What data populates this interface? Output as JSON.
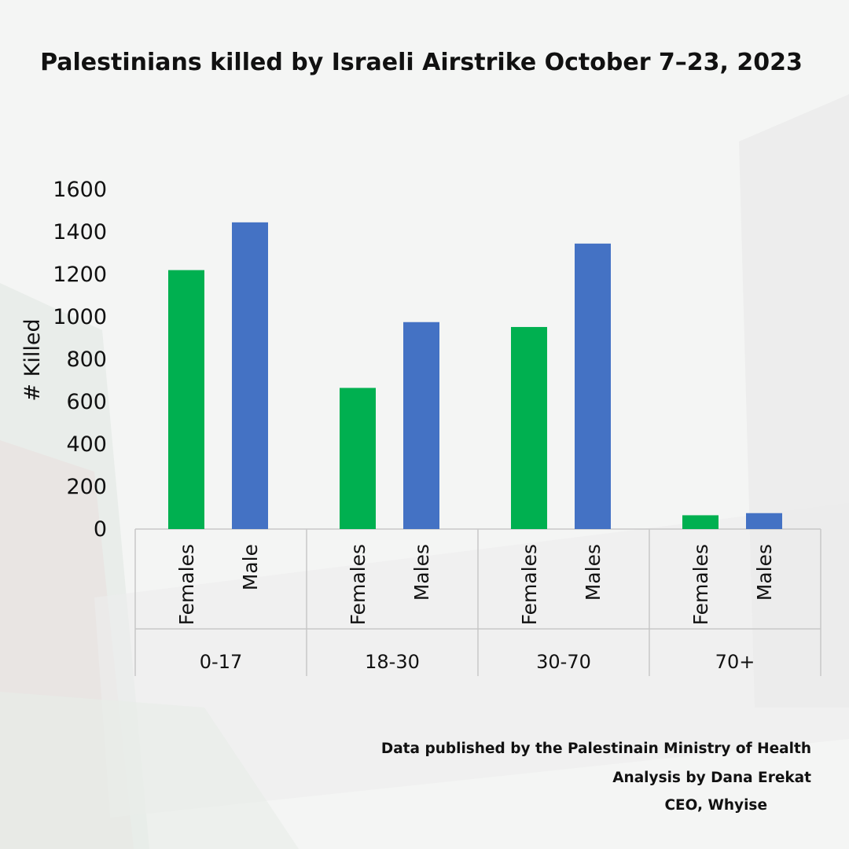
{
  "colors": {
    "females": "#00b050",
    "males": "#4472c4",
    "axis": "#c8c8c8",
    "text": "#111111"
  },
  "chart_data": {
    "type": "bar",
    "title": "Palestinians killed by Israeli Airstrike October 7–23, 2023",
    "ylabel": "# Killed",
    "ylim": [
      0,
      1600
    ],
    "yticks": [
      0,
      200,
      400,
      600,
      800,
      1000,
      1200,
      1400,
      1600
    ],
    "grid": false,
    "groups": [
      {
        "label": "0-17",
        "bars": [
          {
            "label": "Females",
            "series": "females",
            "value": 1220
          },
          {
            "label": "Male",
            "series": "males",
            "value": 1445
          }
        ]
      },
      {
        "label": "18-30",
        "bars": [
          {
            "label": "Females",
            "series": "females",
            "value": 665
          },
          {
            "label": "Males",
            "series": "males",
            "value": 975
          }
        ]
      },
      {
        "label": "30-70",
        "bars": [
          {
            "label": "Females",
            "series": "females",
            "value": 952
          },
          {
            "label": "Males",
            "series": "males",
            "value": 1345
          }
        ]
      },
      {
        "label": "70+",
        "bars": [
          {
            "label": "Females",
            "series": "females",
            "value": 65
          },
          {
            "label": "Males",
            "series": "males",
            "value": 75
          }
        ]
      }
    ]
  },
  "credits": {
    "line1": "Data published by the Palestinain Ministry of Health",
    "line2": "Analysis by Dana Erekat",
    "line3": "CEO, Whyise"
  }
}
